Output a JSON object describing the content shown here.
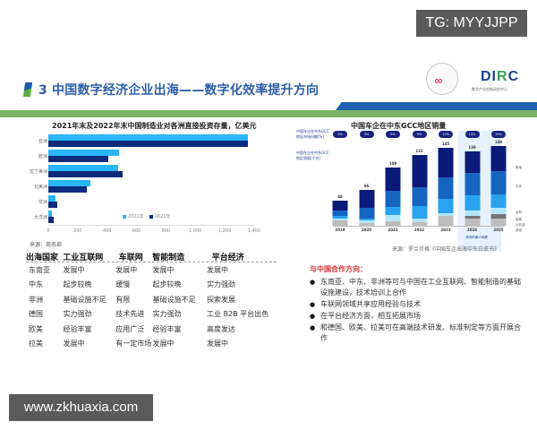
{
  "watermarks": {
    "top": "TG: MYYJJPP",
    "bottom": "www.zkhuaxia.com"
  },
  "header": {
    "title": "3 中国数字经济企业出海——数字化效率提升方向",
    "logo_left_icon": "∞",
    "logo_right": {
      "brand_main": "DI",
      "brand_accent": "R",
      "brand_end": "C",
      "subtitle": "数字产业创新研究中心"
    }
  },
  "colors": {
    "title_blue": "#2e5ea8",
    "band_blue": "#1f63b0",
    "band_green": "#7ab364",
    "series_2022": "#29b6f6",
    "series_2021": "#0d2b7a",
    "accent_red": "#d63030"
  },
  "chart_data": [
    {
      "type": "bar",
      "orientation": "horizontal",
      "title": "2021年末及2022年末中国制造业对各洲直接投资存量，亿美元",
      "categories": [
        "亚洲",
        "欧洲",
        "拉丁美洲",
        "北美洲",
        "非洲",
        "大洋洲"
      ],
      "series": [
        {
          "name": "2022年",
          "color": "#29b6f6",
          "values": [
            1360,
            480,
            475,
            285,
            50,
            22
          ]
        },
        {
          "name": "2021年",
          "color": "#0d2b7a",
          "values": [
            1355,
            410,
            505,
            260,
            58,
            38
          ]
        }
      ],
      "xlim": [
        0,
        1400
      ],
      "xticks": [
        "0",
        "200",
        "400",
        "600",
        "800",
        "1,000",
        "1,200",
        "1,400"
      ],
      "legend_position": "inside-bottom-right",
      "grid": false,
      "source": "来源：商务部"
    },
    {
      "type": "bar",
      "stacked": true,
      "title": "中国车企在中东GCC地区销量",
      "categories": [
        "2019",
        "2020",
        "2021",
        "2022",
        "2023",
        "2024",
        "2025"
      ],
      "totals": [
        46,
        66,
        109,
        131,
        145,
        139,
        148
      ],
      "market_share": [
        "2%",
        "3%",
        "5%",
        "9%",
        "12%",
        "14%",
        "15%"
      ],
      "share_label": "中国车企在中东GCC地区市场份额[%]",
      "volume_label": "中国车企在中东GCC地区销量[千台]",
      "series": [
        {
          "name": "其他",
          "color": "#bdbdbd",
          "values": [
            10,
            5,
            8,
            6,
            18,
            14,
            14
          ]
        },
        {
          "name": "比亚迪",
          "color": "#757575",
          "values": [
            0,
            0,
            0,
            0,
            0,
            5,
            8
          ]
        },
        {
          "name": "哈弗",
          "color": "#b3e5fc",
          "values": [
            4,
            5,
            12,
            8,
            6,
            10,
            12
          ]
        },
        {
          "name": "吉利",
          "color": "#29a3f0",
          "values": [
            4,
            4,
            15,
            22,
            26,
            28,
            25
          ]
        },
        {
          "name": "长安",
          "color": "#1565c0",
          "values": [
            10,
            20,
            30,
            35,
            40,
            42,
            42
          ]
        },
        {
          "name": "奇瑞",
          "color": "#0a1a78",
          "values": [
            18,
            32,
            44,
            60,
            55,
            40,
            47
          ]
        }
      ],
      "forecast_label": "预测的最小销量",
      "forecast_years": [
        "2024",
        "2025"
      ],
      "source": "来源：罗兰贝格《中国车企出海中东白皮书》"
    }
  ],
  "table": {
    "headers": [
      "出海国家",
      "工业互联网",
      "车联网",
      "智能制造",
      "平台经济"
    ],
    "rows": [
      [
        "东南亚",
        "发展中",
        "发展中",
        "发展中",
        "发展中"
      ],
      [
        "中东",
        "起步较晚",
        "缓慢",
        "起步较晚",
        "实力强劲"
      ],
      [
        "非洲",
        "基础设施不足",
        "有限",
        "基础设施不足",
        "探索发展"
      ],
      [
        "德国",
        "实力强劲",
        "技术先进",
        "实力强劲",
        "工业 B2B 平台出色"
      ],
      [
        "欧美",
        "经验丰富",
        "应用广泛",
        "经验丰富",
        "高度发达"
      ],
      [
        "拉美",
        "发展中",
        "有一定市场",
        "发展中",
        "发展中"
      ]
    ]
  },
  "cooperation": {
    "title": "与中国合作方向：",
    "items": [
      "东南亚、中东、非洲等可与中国在工业互联网、智能制造的基础设施建设，技术培训上合作",
      "车联网领域共享应用经验与技术",
      "在平台经济方面，相互拓展市场",
      "和德国、欧美、拉美可在高端技术研发、标准制定等方面开展合作"
    ]
  }
}
